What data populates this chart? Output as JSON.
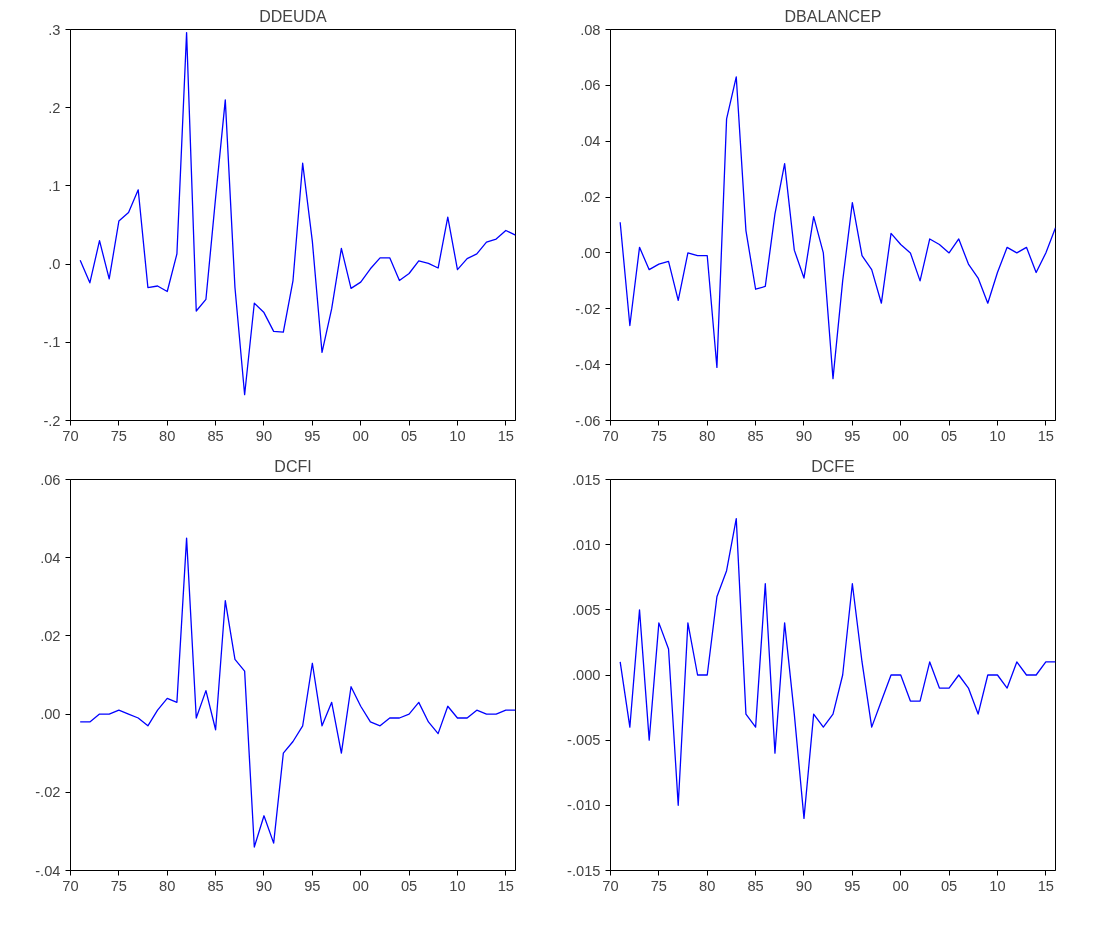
{
  "chart_data": [
    {
      "type": "line",
      "title": "DDEUDA",
      "x": [
        1971,
        1972,
        1973,
        1974,
        1975,
        1976,
        1977,
        1978,
        1979,
        1980,
        1981,
        1982,
        1983,
        1984,
        1985,
        1986,
        1987,
        1988,
        1989,
        1990,
        1991,
        1992,
        1993,
        1994,
        1995,
        1996,
        1997,
        1998,
        1999,
        2000,
        2001,
        2002,
        2003,
        2004,
        2005,
        2006,
        2007,
        2008,
        2009,
        2010,
        2011,
        2012,
        2013,
        2014,
        2015,
        2016
      ],
      "series": [
        {
          "color": "#0000ff",
          "values": [
            0.005,
            -0.024,
            0.03,
            -0.019,
            0.055,
            0.066,
            0.095,
            -0.03,
            -0.028,
            -0.035,
            0.013,
            0.296,
            -0.06,
            -0.045,
            0.085,
            0.21,
            -0.03,
            -0.167,
            -0.05,
            -0.062,
            -0.086,
            -0.087,
            -0.021,
            0.129,
            0.029,
            -0.113,
            -0.057,
            0.02,
            -0.031,
            -0.023,
            -0.006,
            0.008,
            0.008,
            -0.021,
            -0.012,
            0.004,
            0.001,
            -0.005,
            0.06,
            -0.007,
            0.007,
            0.013,
            0.028,
            0.032,
            0.043,
            0.037
          ]
        }
      ],
      "xlim": [
        1970,
        2016
      ],
      "xticks": [
        {
          "value": 1970,
          "label": "70"
        },
        {
          "value": 1975,
          "label": "75"
        },
        {
          "value": 1980,
          "label": "80"
        },
        {
          "value": 1985,
          "label": "85"
        },
        {
          "value": 1990,
          "label": "90"
        },
        {
          "value": 1995,
          "label": "95"
        },
        {
          "value": 2000,
          "label": "00"
        },
        {
          "value": 2005,
          "label": "05"
        },
        {
          "value": 2010,
          "label": "10"
        },
        {
          "value": 2015,
          "label": "15"
        }
      ],
      "ylim": [
        -0.2,
        0.3
      ],
      "yticks": [
        {
          "value": -0.2,
          "label": "-.2"
        },
        {
          "value": -0.1,
          "label": "-.1"
        },
        {
          "value": 0,
          "label": ".0"
        },
        {
          "value": 0.1,
          "label": ".1"
        },
        {
          "value": 0.2,
          "label": ".2"
        },
        {
          "value": 0.3,
          "label": ".3"
        }
      ]
    },
    {
      "type": "line",
      "title": "DBALANCEP",
      "x": [
        1971,
        1972,
        1973,
        1974,
        1975,
        1976,
        1977,
        1978,
        1979,
        1980,
        1981,
        1982,
        1983,
        1984,
        1985,
        1986,
        1987,
        1988,
        1989,
        1990,
        1991,
        1992,
        1993,
        1994,
        1995,
        1996,
        1997,
        1998,
        1999,
        2000,
        2001,
        2002,
        2003,
        2004,
        2005,
        2006,
        2007,
        2008,
        2009,
        2010,
        2011,
        2012,
        2013,
        2014,
        2015,
        2016
      ],
      "series": [
        {
          "color": "#0000ff",
          "values": [
            0.011,
            -0.026,
            0.002,
            -0.006,
            -0.004,
            -0.003,
            -0.017,
            0.0,
            -0.001,
            -0.001,
            -0.041,
            0.048,
            0.063,
            0.008,
            -0.013,
            -0.012,
            0.014,
            0.032,
            0.001,
            -0.009,
            0.013,
            0.0,
            -0.045,
            -0.01,
            0.018,
            -0.001,
            -0.006,
            -0.018,
            0.007,
            0.003,
            0.0,
            -0.01,
            0.005,
            0.003,
            0.0,
            0.005,
            -0.004,
            -0.009,
            -0.018,
            -0.007,
            0.002,
            0.0,
            0.002,
            -0.007,
            0.0,
            0.009
          ]
        }
      ],
      "xlim": [
        1970,
        2016
      ],
      "xticks": [
        {
          "value": 1970,
          "label": "70"
        },
        {
          "value": 1975,
          "label": "75"
        },
        {
          "value": 1980,
          "label": "80"
        },
        {
          "value": 1985,
          "label": "85"
        },
        {
          "value": 1990,
          "label": "90"
        },
        {
          "value": 1995,
          "label": "95"
        },
        {
          "value": 2000,
          "label": "00"
        },
        {
          "value": 2005,
          "label": "05"
        },
        {
          "value": 2010,
          "label": "10"
        },
        {
          "value": 2015,
          "label": "15"
        }
      ],
      "ylim": [
        -0.06,
        0.08
      ],
      "yticks": [
        {
          "value": -0.06,
          "label": "-.06"
        },
        {
          "value": -0.04,
          "label": "-.04"
        },
        {
          "value": -0.02,
          "label": "-.02"
        },
        {
          "value": 0,
          "label": ".00"
        },
        {
          "value": 0.02,
          "label": ".02"
        },
        {
          "value": 0.04,
          "label": ".04"
        },
        {
          "value": 0.06,
          "label": ".06"
        },
        {
          "value": 0.08,
          "label": ".08"
        }
      ]
    },
    {
      "type": "line",
      "title": "DCFI",
      "x": [
        1971,
        1972,
        1973,
        1974,
        1975,
        1976,
        1977,
        1978,
        1979,
        1980,
        1981,
        1982,
        1983,
        1984,
        1985,
        1986,
        1987,
        1988,
        1989,
        1990,
        1991,
        1992,
        1993,
        1994,
        1995,
        1996,
        1997,
        1998,
        1999,
        2000,
        2001,
        2002,
        2003,
        2004,
        2005,
        2006,
        2007,
        2008,
        2009,
        2010,
        2011,
        2012,
        2013,
        2014,
        2015,
        2016
      ],
      "series": [
        {
          "color": "#0000ff",
          "values": [
            -0.002,
            -0.002,
            0.0,
            0.0,
            0.001,
            0.0,
            -0.001,
            -0.003,
            0.001,
            0.004,
            0.003,
            0.045,
            -0.001,
            0.006,
            -0.004,
            0.029,
            0.014,
            0.011,
            -0.034,
            -0.026,
            -0.033,
            -0.01,
            -0.007,
            -0.003,
            0.013,
            -0.003,
            0.003,
            -0.01,
            0.007,
            0.002,
            -0.002,
            -0.003,
            -0.001,
            -0.001,
            0.0,
            0.003,
            -0.002,
            -0.005,
            0.002,
            -0.001,
            -0.001,
            0.001,
            0.0,
            0.0,
            0.001,
            0.001
          ]
        }
      ],
      "xlim": [
        1970,
        2016
      ],
      "xticks": [
        {
          "value": 1970,
          "label": "70"
        },
        {
          "value": 1975,
          "label": "75"
        },
        {
          "value": 1980,
          "label": "80"
        },
        {
          "value": 1985,
          "label": "85"
        },
        {
          "value": 1990,
          "label": "90"
        },
        {
          "value": 1995,
          "label": "95"
        },
        {
          "value": 2000,
          "label": "00"
        },
        {
          "value": 2005,
          "label": "05"
        },
        {
          "value": 2010,
          "label": "10"
        },
        {
          "value": 2015,
          "label": "15"
        }
      ],
      "ylim": [
        -0.04,
        0.06
      ],
      "yticks": [
        {
          "value": -0.04,
          "label": "-.04"
        },
        {
          "value": -0.02,
          "label": "-.02"
        },
        {
          "value": 0,
          "label": ".00"
        },
        {
          "value": 0.02,
          "label": ".02"
        },
        {
          "value": 0.04,
          "label": ".04"
        },
        {
          "value": 0.06,
          "label": ".06"
        }
      ]
    },
    {
      "type": "line",
      "title": "DCFE",
      "x": [
        1971,
        1972,
        1973,
        1974,
        1975,
        1976,
        1977,
        1978,
        1979,
        1980,
        1981,
        1982,
        1983,
        1984,
        1985,
        1986,
        1987,
        1988,
        1989,
        1990,
        1991,
        1992,
        1993,
        1994,
        1995,
        1996,
        1997,
        1998,
        1999,
        2000,
        2001,
        2002,
        2003,
        2004,
        2005,
        2006,
        2007,
        2008,
        2009,
        2010,
        2011,
        2012,
        2013,
        2014,
        2015,
        2016
      ],
      "series": [
        {
          "color": "#0000ff",
          "values": [
            0.001,
            -0.004,
            0.005,
            -0.005,
            0.004,
            0.002,
            -0.01,
            0.004,
            0.0,
            0.0,
            0.006,
            0.008,
            0.012,
            -0.003,
            -0.004,
            0.007,
            -0.006,
            0.004,
            -0.003,
            -0.011,
            -0.003,
            -0.004,
            -0.003,
            0.0,
            0.007,
            0.001,
            -0.004,
            -0.002,
            0.0,
            0.0,
            -0.002,
            -0.002,
            0.001,
            -0.001,
            -0.001,
            0.0,
            -0.001,
            -0.003,
            0.0,
            0.0,
            -0.001,
            0.001,
            0.0,
            0.0,
            0.001,
            0.001
          ]
        }
      ],
      "xlim": [
        1970,
        2016
      ],
      "xticks": [
        {
          "value": 1970,
          "label": "70"
        },
        {
          "value": 1975,
          "label": "75"
        },
        {
          "value": 1980,
          "label": "80"
        },
        {
          "value": 1985,
          "label": "85"
        },
        {
          "value": 1990,
          "label": "90"
        },
        {
          "value": 1995,
          "label": "95"
        },
        {
          "value": 2000,
          "label": "00"
        },
        {
          "value": 2005,
          "label": "05"
        },
        {
          "value": 2010,
          "label": "10"
        },
        {
          "value": 2015,
          "label": "15"
        }
      ],
      "ylim": [
        -0.015,
        0.015
      ],
      "yticks": [
        {
          "value": -0.015,
          "label": "-.015"
        },
        {
          "value": -0.01,
          "label": "-.010"
        },
        {
          "value": -0.005,
          "label": "-.005"
        },
        {
          "value": 0,
          "label": ".000"
        },
        {
          "value": 0.005,
          "label": ".005"
        },
        {
          "value": 0.01,
          "label": ".010"
        },
        {
          "value": 0.015,
          "label": ".015"
        }
      ]
    }
  ]
}
